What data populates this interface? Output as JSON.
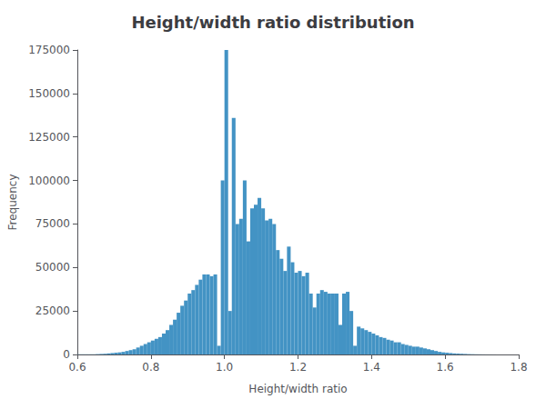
{
  "chart_data": {
    "type": "histogram",
    "title": "Height/width ratio distribution",
    "xlabel": "Height/width ratio",
    "ylabel": "Frequency",
    "color": "#4393c4",
    "bins": [
      0.6,
      0.61,
      0.62,
      0.63,
      0.64,
      0.65,
      0.66,
      0.67,
      0.68,
      0.69,
      0.7,
      0.71,
      0.72,
      0.73,
      0.74,
      0.75,
      0.76,
      0.77,
      0.78,
      0.79,
      0.8,
      0.81,
      0.82,
      0.83,
      0.84,
      0.85,
      0.86,
      0.87,
      0.88,
      0.89,
      0.9,
      0.91,
      0.92,
      0.93,
      0.94,
      0.95,
      0.96,
      0.97,
      0.98,
      0.99,
      1.0,
      1.01,
      1.02,
      1.03,
      1.04,
      1.05,
      1.06,
      1.07,
      1.08,
      1.09,
      1.1,
      1.11,
      1.12,
      1.13,
      1.14,
      1.15,
      1.16,
      1.17,
      1.18,
      1.19,
      1.2,
      1.21,
      1.22,
      1.23,
      1.24,
      1.25,
      1.26,
      1.27,
      1.28,
      1.29,
      1.3,
      1.31,
      1.32,
      1.33,
      1.34,
      1.35,
      1.36,
      1.37,
      1.38,
      1.39,
      1.4,
      1.41,
      1.42,
      1.43,
      1.44,
      1.45,
      1.46,
      1.47,
      1.48,
      1.49,
      1.5,
      1.51,
      1.52,
      1.53,
      1.54,
      1.55,
      1.56,
      1.57,
      1.58,
      1.59,
      1.6,
      1.61,
      1.62,
      1.63,
      1.64,
      1.65,
      1.66,
      1.67,
      1.68,
      1.69,
      1.7,
      1.71,
      1.72,
      1.73,
      1.74,
      1.75,
      1.76,
      1.77,
      1.78,
      1.79,
      1.8
    ],
    "values": [
      100,
      100,
      100,
      100,
      100,
      200,
      300,
      400,
      600,
      800,
      1000,
      1200,
      1500,
      2000,
      2500,
      3000,
      4000,
      5000,
      6000,
      7000,
      8000,
      9000,
      10000,
      12000,
      14000,
      17000,
      20000,
      24000,
      28000,
      31000,
      35000,
      37000,
      40000,
      43000,
      46000,
      46000,
      45000,
      46000,
      5000,
      100000,
      175000,
      25000,
      136000,
      75000,
      78000,
      100000,
      65000,
      84000,
      86000,
      90000,
      84000,
      77000,
      78000,
      75000,
      60000,
      55000,
      48000,
      62000,
      53000,
      47000,
      48000,
      45000,
      47000,
      35000,
      27000,
      35000,
      37000,
      36000,
      35000,
      35000,
      35000,
      17000,
      35000,
      36000,
      25000,
      5000,
      16000,
      15000,
      14000,
      13000,
      12000,
      11000,
      10000,
      9500,
      8500,
      8000,
      7000,
      7000,
      6000,
      5500,
      5000,
      4500,
      4500,
      4000,
      3500,
      3000,
      2500,
      2000,
      1500,
      1200,
      1000,
      800,
      600,
      500,
      400,
      300,
      200,
      150,
      100,
      80,
      60,
      40,
      30,
      20,
      15,
      10,
      8,
      5,
      3,
      2
    ],
    "xlim": [
      0.6,
      1.8
    ],
    "xticks": [
      0.6,
      0.8,
      {
        "value": 1.0,
        "label": "1.0"
      },
      1.2,
      1.4,
      1.6,
      1.8
    ],
    "ylim": [
      0,
      175000
    ],
    "yticks": [
      0,
      25000,
      50000,
      75000,
      100000,
      125000,
      150000,
      175000
    ],
    "grid": false
  }
}
